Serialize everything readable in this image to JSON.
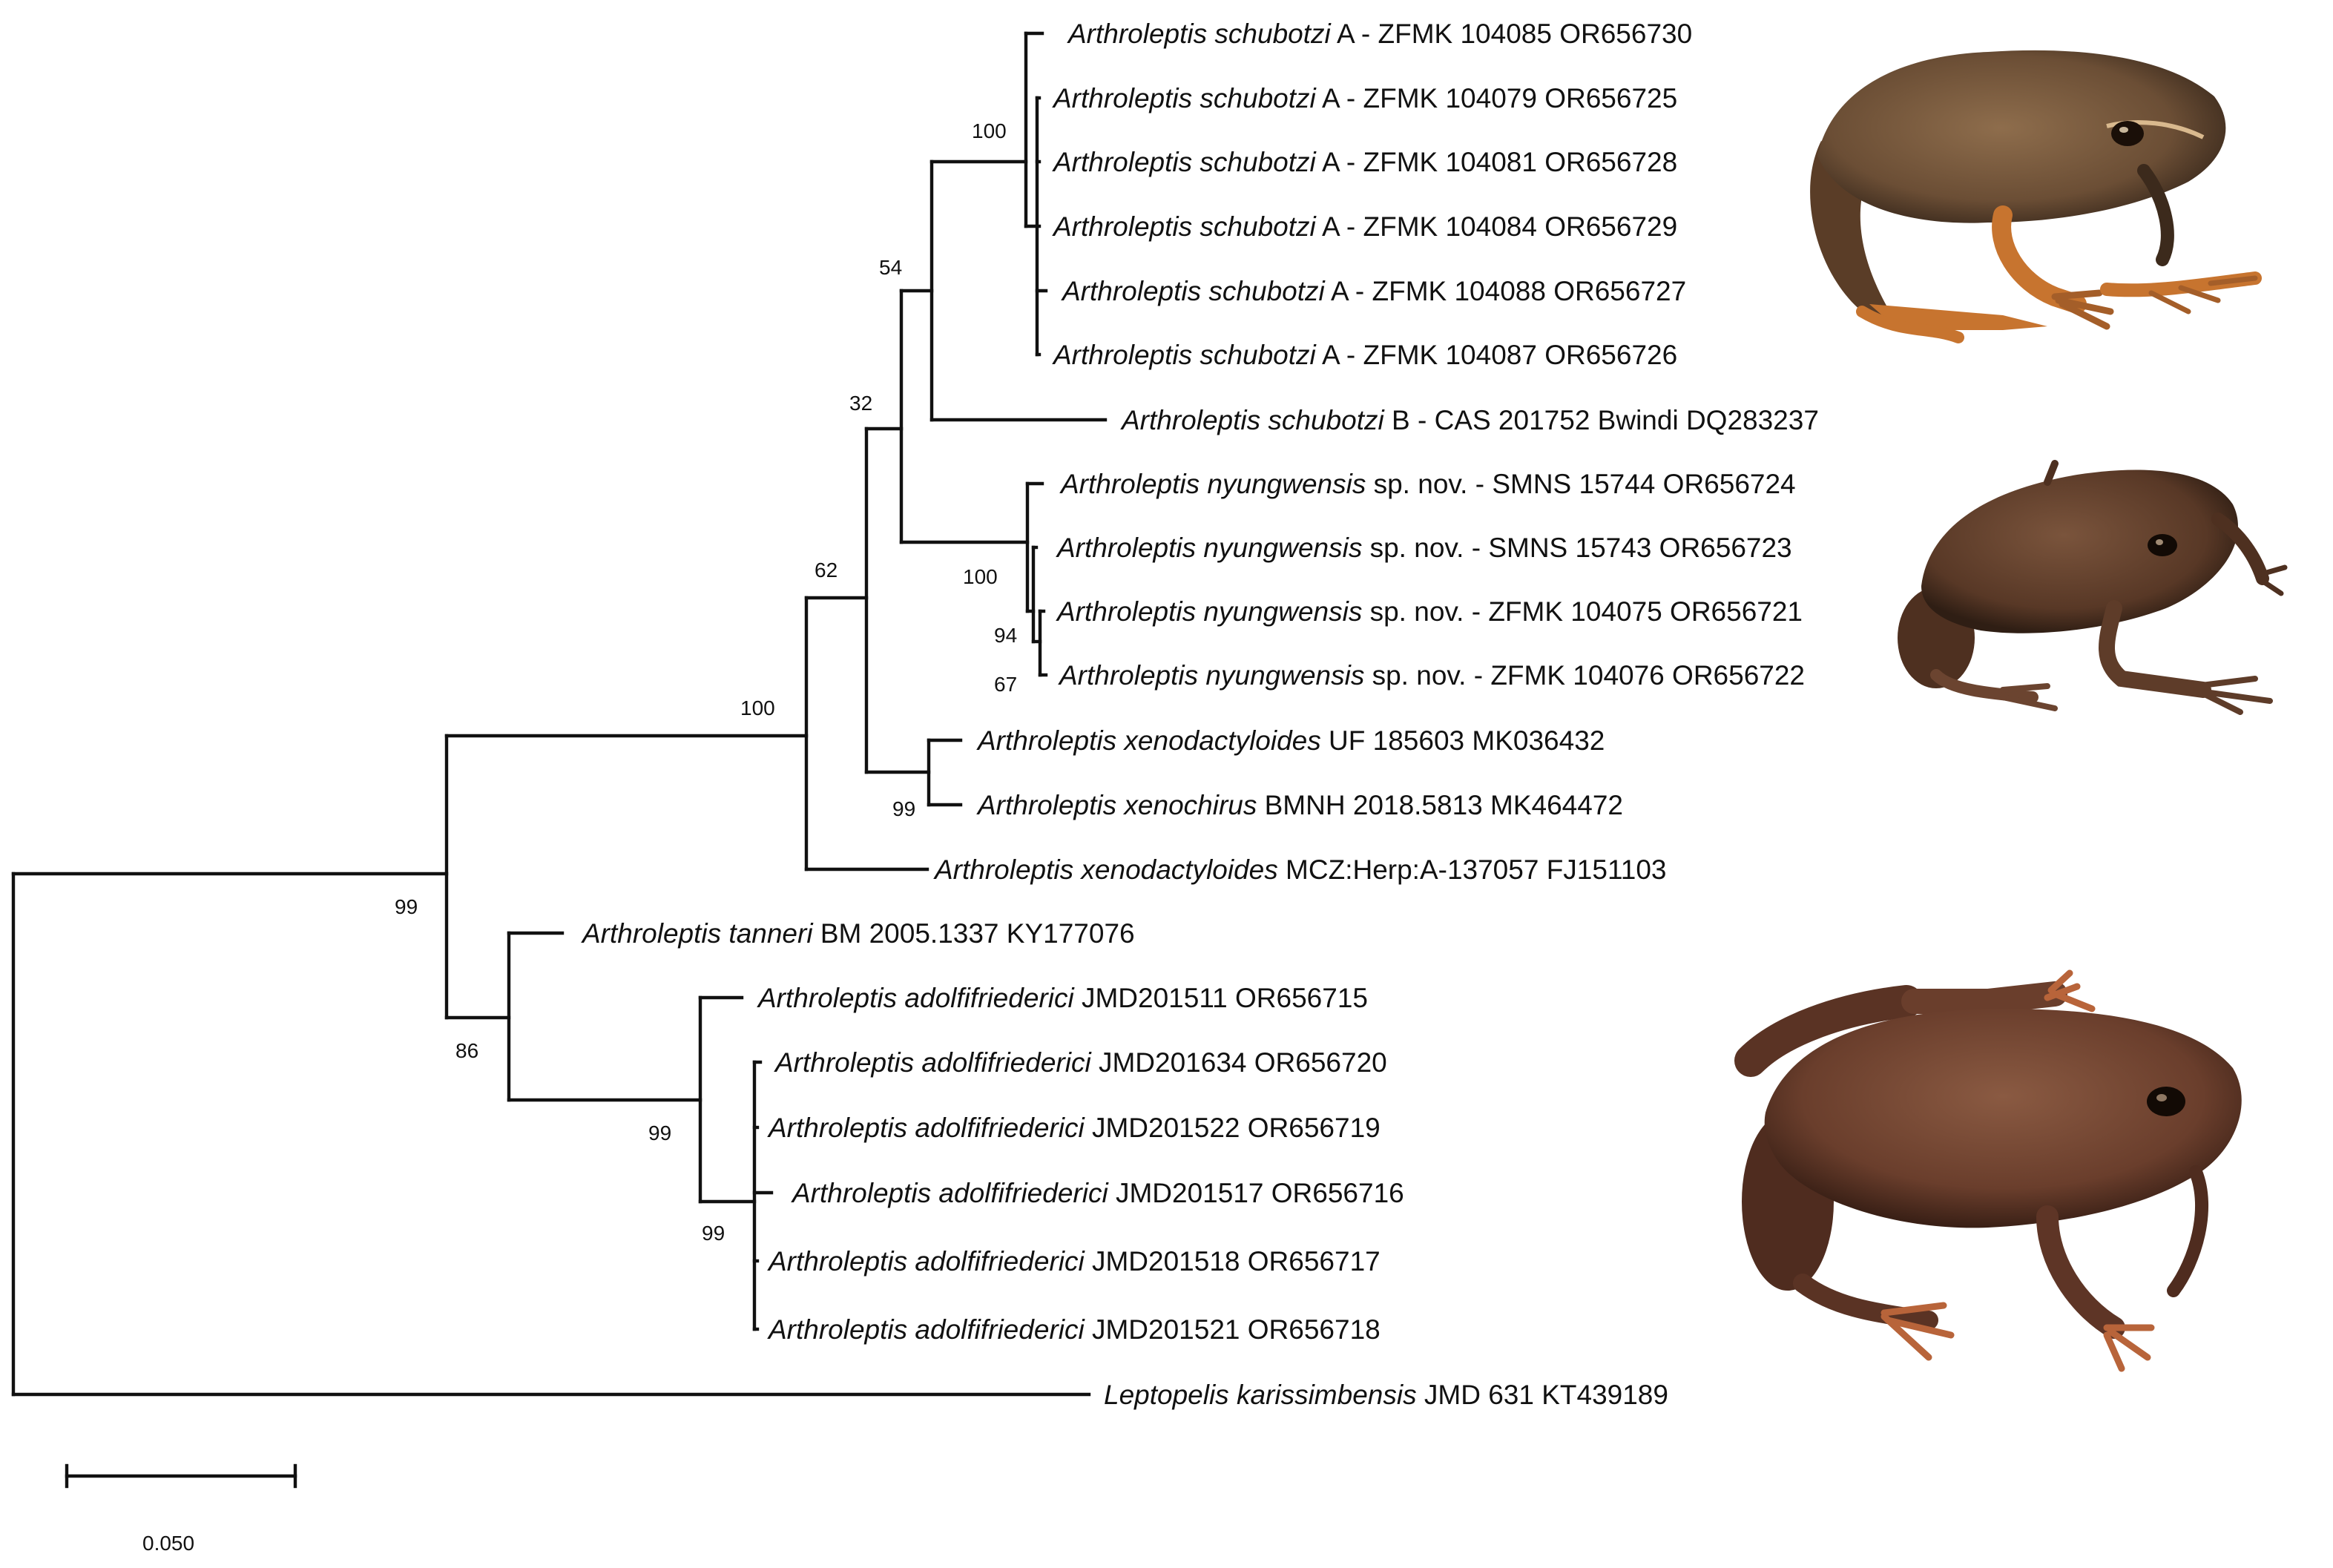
{
  "figure": {
    "type": "phylogenetic-tree",
    "tips": [
      {
        "species": "Arthroleptis schubotzi",
        "suffix": " A - ZFMK 104085 OR656730"
      },
      {
        "species": "Arthroleptis schubotzi",
        "suffix": " A - ZFMK 104079 OR656725"
      },
      {
        "species": "Arthroleptis schubotzi",
        "suffix": " A - ZFMK 104081 OR656728"
      },
      {
        "species": "Arthroleptis schubotzi",
        "suffix": " A - ZFMK 104084 OR656729"
      },
      {
        "species": "Arthroleptis schubotzi",
        "suffix": " A - ZFMK 104088 OR656727"
      },
      {
        "species": "Arthroleptis schubotzi",
        "suffix": " A - ZFMK 104087 OR656726"
      },
      {
        "species": "Arthroleptis schubotzi",
        "suffix": " B - CAS 201752 Bwindi DQ283237"
      },
      {
        "species": "Arthroleptis nyungwensis",
        "suffix": " sp. nov. - SMNS 15744 OR656724"
      },
      {
        "species": "Arthroleptis nyungwensis",
        "suffix": " sp. nov. - SMNS 15743 OR656723"
      },
      {
        "species": "Arthroleptis nyungwensis",
        "suffix": " sp. nov. - ZFMK 104075 OR656721"
      },
      {
        "species": "Arthroleptis nyungwensis",
        "suffix": " sp. nov. - ZFMK 104076 OR656722"
      },
      {
        "species": "Arthroleptis xenodactyloides",
        "suffix": " UF 185603 MK036432"
      },
      {
        "species": "Arthroleptis xenochirus",
        "suffix": " BMNH 2018.5813 MK464472"
      },
      {
        "species": "Arthroleptis xenodactyloides",
        "suffix": " MCZ:Herp:A-137057 FJ151103"
      },
      {
        "species": "Arthroleptis tanneri",
        "suffix": " BM 2005.1337 KY177076"
      },
      {
        "species": "Arthroleptis adolfifriederici",
        "suffix": " JMD201511 OR656715"
      },
      {
        "species": "Arthroleptis adolfifriederici",
        "suffix": " JMD201634 OR656720"
      },
      {
        "species": "Arthroleptis adolfifriederici",
        "suffix": " JMD201522 OR656719"
      },
      {
        "species": "Arthroleptis adolfifriederici",
        "suffix": " JMD201517 OR656716"
      },
      {
        "species": "Arthroleptis adolfifriederici",
        "suffix": " JMD201518 OR656717"
      },
      {
        "species": "Arthroleptis adolfifriederici",
        "suffix": " JMD201521 OR656718"
      },
      {
        "species": "Leptopelis karissimbensis",
        "suffix": " JMD 631 KT439189"
      }
    ],
    "support_values": [
      "100",
      "54",
      "32",
      "100",
      "94",
      "67",
      "62",
      "99",
      "100",
      "99",
      "86",
      "99",
      "99"
    ],
    "scale_bar": {
      "value": 0.05,
      "label": "0.050"
    },
    "photos": [
      {
        "name": "frog-photo-schubotzi",
        "subject": "Arthroleptis schubotzi",
        "body_color": "#7a5a3c",
        "limb_color": "#c7742f"
      },
      {
        "name": "frog-photo-nyungwensis",
        "subject": "Arthroleptis nyungwensis",
        "body_color": "#5a3a26",
        "limb_color": "#6b4430"
      },
      {
        "name": "frog-photo-adolfifriederici",
        "subject": "Arthroleptis adolfifriederici",
        "body_color": "#6a3e2c",
        "limb_color": "#b8643a"
      }
    ],
    "colors": {
      "line": "#111111",
      "text": "#111111",
      "background": "#ffffff"
    }
  }
}
